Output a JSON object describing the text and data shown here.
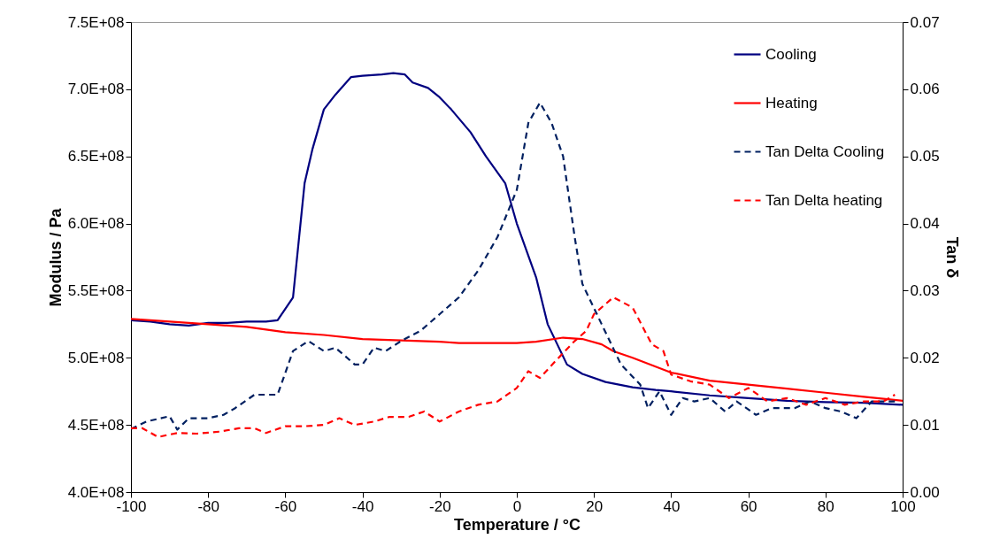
{
  "chart_data": {
    "type": "line",
    "xlabel": "Temperature / °C",
    "ylabel": "Modulus / Pa",
    "y2label": "Tan δ",
    "xlim": [
      -100,
      100
    ],
    "xticks": [
      -100,
      -80,
      -60,
      -40,
      -20,
      0,
      20,
      40,
      60,
      80,
      100
    ],
    "ylim": [
      400000000,
      750000000
    ],
    "yticks": [
      {
        "value": 400000000,
        "label": "4.0E+08"
      },
      {
        "value": 450000000,
        "label": "4.5E+08"
      },
      {
        "value": 500000000,
        "label": "5.0E+08"
      },
      {
        "value": 550000000,
        "label": "5.5E+08"
      },
      {
        "value": 600000000,
        "label": "6.0E+08"
      },
      {
        "value": 650000000,
        "label": "6.5E+08"
      },
      {
        "value": 700000000,
        "label": "7.0E+08"
      },
      {
        "value": 750000000,
        "label": "7.5E+08"
      }
    ],
    "y2lim": [
      0,
      0.07
    ],
    "y2ticks": [
      {
        "value": 0,
        "label": "0.00"
      },
      {
        "value": 0.01,
        "label": "0.01"
      },
      {
        "value": 0.02,
        "label": "0.02"
      },
      {
        "value": 0.03,
        "label": "0.03"
      },
      {
        "value": 0.04,
        "label": "0.04"
      },
      {
        "value": 0.05,
        "label": "0.05"
      },
      {
        "value": 0.06,
        "label": "0.06"
      },
      {
        "value": 0.07,
        "label": "0.07"
      }
    ],
    "grid": false,
    "legend": "top right",
    "series": [
      {
        "name": "Cooling",
        "color": "#000080",
        "line_style": "solid",
        "x": [
          -100,
          -95,
          -90,
          -85,
          -80,
          -75,
          -70,
          -65,
          -62,
          -58,
          -55,
          -53,
          -50,
          -47,
          -43,
          -40,
          -35,
          -32,
          -29,
          -27,
          -23,
          -20,
          -17,
          -12,
          -8,
          -3,
          0,
          5,
          8,
          13,
          17,
          23,
          30,
          36,
          40,
          50,
          60,
          70,
          80,
          90,
          100
        ],
        "values": [
          528000000,
          527000000,
          525000000,
          524000000,
          526000000,
          526000000,
          527000000,
          527000000,
          528000000,
          545000000,
          630000000,
          655000000,
          685000000,
          696000000,
          709000000,
          710000000,
          711000000,
          712000000,
          711000000,
          705000000,
          701000000,
          694000000,
          685000000,
          668000000,
          650000000,
          630000000,
          600000000,
          560000000,
          525000000,
          495000000,
          488000000,
          482000000,
          478000000,
          476000000,
          475000000,
          472000000,
          470000000,
          468000000,
          467000000,
          466500000,
          465000000
        ]
      },
      {
        "name": "Heating",
        "color": "#ff0000",
        "line_style": "solid",
        "x": [
          -100,
          -90,
          -80,
          -70,
          -60,
          -50,
          -40,
          -30,
          -20,
          -15,
          0,
          5,
          12,
          17,
          22,
          25,
          30,
          40,
          50,
          60,
          70,
          80,
          90,
          100
        ],
        "values": [
          529000000,
          527000000,
          525000000,
          523000000,
          519000000,
          517000000,
          514000000,
          513000000,
          512000000,
          511000000,
          511000000,
          512000000,
          515000000,
          514000000,
          510000000,
          505000000,
          500000000,
          489000000,
          483000000,
          480000000,
          477000000,
          474000000,
          471000000,
          468000000
        ]
      },
      {
        "name": "Tan Delta Cooling",
        "color": "#002060",
        "line_style": "dashed",
        "axis": "y2",
        "x": [
          -100,
          -96,
          -90,
          -88,
          -85,
          -80,
          -76,
          -73,
          -68,
          -62,
          -58,
          -54,
          -50,
          -47,
          -42,
          -40,
          -37,
          -34,
          -30,
          -25,
          -20,
          -15,
          -10,
          -5,
          0,
          3,
          6,
          9,
          12,
          15,
          17,
          22,
          27,
          32,
          34,
          37,
          40,
          43,
          46,
          50,
          54,
          57,
          62,
          66,
          72,
          76,
          80,
          84,
          88,
          92,
          96,
          99
        ],
        "values": [
          0.0094,
          0.0105,
          0.0113,
          0.0093,
          0.011,
          0.011,
          0.0115,
          0.0125,
          0.0145,
          0.0145,
          0.021,
          0.0225,
          0.021,
          0.0215,
          0.019,
          0.019,
          0.0215,
          0.021,
          0.0225,
          0.024,
          0.0265,
          0.029,
          0.033,
          0.038,
          0.045,
          0.055,
          0.058,
          0.055,
          0.05,
          0.038,
          0.031,
          0.025,
          0.019,
          0.016,
          0.0125,
          0.015,
          0.0115,
          0.014,
          0.0135,
          0.014,
          0.012,
          0.0135,
          0.0115,
          0.0125,
          0.0125,
          0.0135,
          0.0125,
          0.012,
          0.011,
          0.0135,
          0.0135,
          0.0135
        ]
      },
      {
        "name": "Tan Delta heating",
        "color": "#ff0000",
        "line_style": "dashed",
        "axis": "y2",
        "x": [
          -100,
          -97,
          -93,
          -88,
          -83,
          -77,
          -72,
          -68,
          -65,
          -60,
          -55,
          -50,
          -46,
          -42,
          -37,
          -33,
          -28,
          -24,
          -20,
          -15,
          -10,
          -5,
          0,
          3,
          6,
          10,
          15,
          18,
          20,
          23,
          25,
          30,
          35,
          38,
          40,
          45,
          50,
          55,
          60,
          65,
          70,
          75,
          80,
          85,
          90,
          95,
          98
        ],
        "values": [
          0.0095,
          0.0095,
          0.0082,
          0.0088,
          0.0087,
          0.009,
          0.0095,
          0.0095,
          0.0088,
          0.0098,
          0.0098,
          0.01,
          0.011,
          0.01,
          0.0105,
          0.0112,
          0.0112,
          0.012,
          0.0105,
          0.012,
          0.013,
          0.0135,
          0.0155,
          0.018,
          0.017,
          0.0195,
          0.0225,
          0.024,
          0.0265,
          0.028,
          0.029,
          0.0275,
          0.022,
          0.021,
          0.0175,
          0.0165,
          0.016,
          0.014,
          0.0155,
          0.0135,
          0.014,
          0.013,
          0.014,
          0.013,
          0.0135,
          0.0135,
          0.0145
        ]
      }
    ]
  }
}
